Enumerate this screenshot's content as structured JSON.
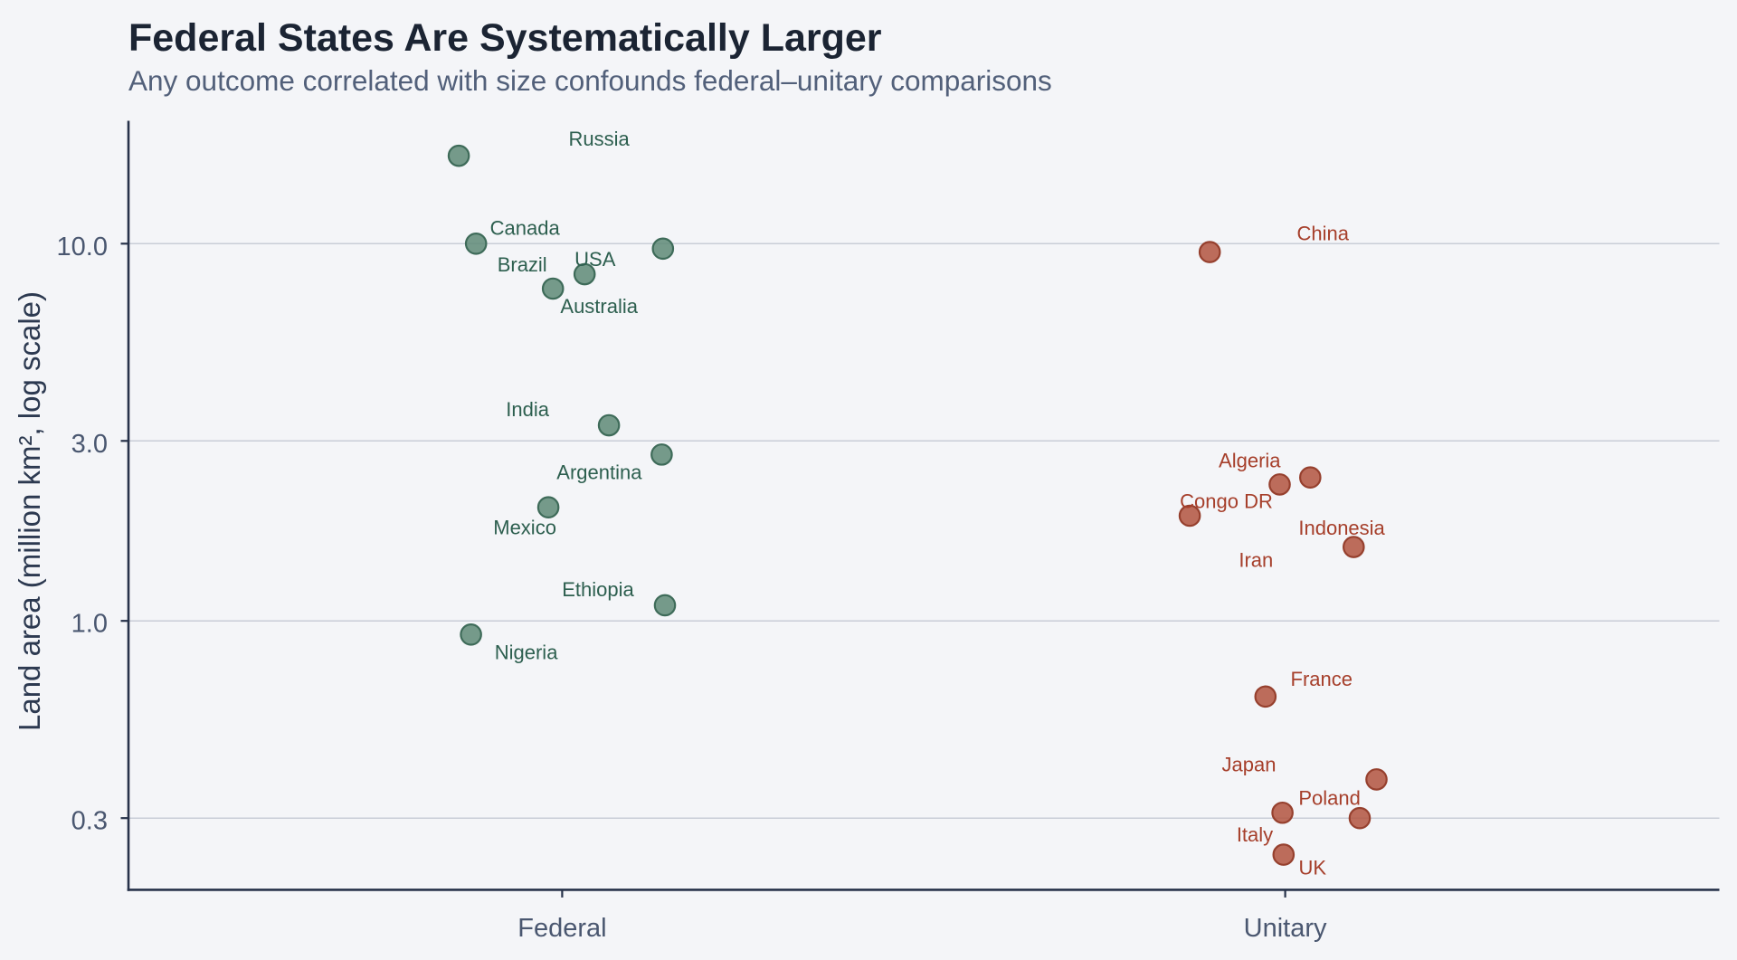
{
  "chart": {
    "title": "Federal States Are Systematically Larger",
    "subtitle": "Any outcome correlated with size confounds federal–unitary comparisons",
    "colors": {
      "background": "#f4f5f8",
      "gridline": "#c9cdd7",
      "axis_line": "#27324a",
      "title": "#1b2433",
      "subtitle": "#52607a",
      "axis_title": "#2c3950",
      "tick_label": "#4a5770",
      "federal_fill": "#5e8a77",
      "federal_stroke": "#3e6b59",
      "federal_label": "#2d5f4f",
      "unitary_fill": "#b25440",
      "unitary_stroke": "#96402e",
      "unitary_label": "#a63f2b"
    }
  },
  "chart_data": {
    "type": "scatter",
    "title": "Federal States Are Systematically Larger",
    "subtitle": "Any outcome correlated with size confounds federal–unitary comparisons",
    "xlabel": "",
    "ylabel": "Land area (million km², log scale)",
    "y_scale": "log",
    "grid": "horizontal-only",
    "legend": "none",
    "x_categories": [
      "Federal",
      "Unitary"
    ],
    "y_ticks": [
      10.0,
      3.0,
      1.0,
      0.3
    ],
    "y_tick_labels": [
      "10.0",
      "3.0",
      "1.0",
      "0.3"
    ],
    "ylim_log": [
      0.21,
      21
    ],
    "series": [
      {
        "name": "Federal",
        "points": [
          {
            "country": "Russia",
            "value": 17.1,
            "jitter": -114.3,
            "label_dx": 155,
            "label_dy": -19
          },
          {
            "country": "Canada",
            "value": 10.0,
            "jitter": -95.2,
            "label_dx": 54,
            "label_dy": -18
          },
          {
            "country": "USA",
            "value": 9.7,
            "jitter": 111.4,
            "label_dx": -75,
            "label_dy": 11
          },
          {
            "country": "Brazil",
            "value": 8.3,
            "jitter": 24.8,
            "label_dx": -69,
            "label_dy": -11
          },
          {
            "country": "Australia",
            "value": 7.6,
            "jitter": -10.2,
            "label_dx": 51,
            "label_dy": 19
          },
          {
            "country": "India",
            "value": 3.3,
            "jitter": 51.7,
            "label_dx": -90,
            "label_dy": -18
          },
          {
            "country": "Argentina",
            "value": 2.76,
            "jitter": 110.0,
            "label_dx": -69,
            "label_dy": 19
          },
          {
            "country": "Mexico",
            "value": 2.0,
            "jitter": -15.3,
            "label_dx": -26,
            "label_dy": 22
          },
          {
            "country": "Ethiopia",
            "value": 1.1,
            "jitter": 113.6,
            "label_dx": -74,
            "label_dy": -18
          },
          {
            "country": "Nigeria",
            "value": 0.92,
            "jitter": -100.8,
            "label_dx": 61,
            "label_dy": 19
          }
        ]
      },
      {
        "name": "Unitary",
        "points": [
          {
            "country": "China",
            "value": 9.5,
            "jitter": -83.4,
            "label_dx": 125,
            "label_dy": -21
          },
          {
            "country": "Algeria",
            "value": 2.4,
            "jitter": 27.7,
            "label_dx": -67,
            "label_dy": -19
          },
          {
            "country": "Congo DR",
            "value": 2.3,
            "jitter": -6.1,
            "label_dx": -59,
            "label_dy": 18
          },
          {
            "country": "Indonesia",
            "value": 1.9,
            "jitter": -105.5,
            "label_dx": 168,
            "label_dy": 13
          },
          {
            "country": "Iran",
            "value": 1.57,
            "jitter": 75.7,
            "label_dx": -108,
            "label_dy": 14
          },
          {
            "country": "France",
            "value": 0.63,
            "jitter": -21.8,
            "label_dx": 62,
            "label_dy": -20
          },
          {
            "country": "Japan",
            "value": 0.38,
            "jitter": 100.9,
            "label_dx": -141,
            "label_dy": -17
          },
          {
            "country": "Poland",
            "value": 0.31,
            "jitter": -3.0,
            "label_dx": 52,
            "label_dy": -17
          },
          {
            "country": "Italy",
            "value": 0.3,
            "jitter": 82.4,
            "label_dx": -116,
            "label_dy": 18
          },
          {
            "country": "UK",
            "value": 0.24,
            "jitter": -1.8,
            "label_dx": 32,
            "label_dy": 14
          }
        ]
      }
    ]
  }
}
